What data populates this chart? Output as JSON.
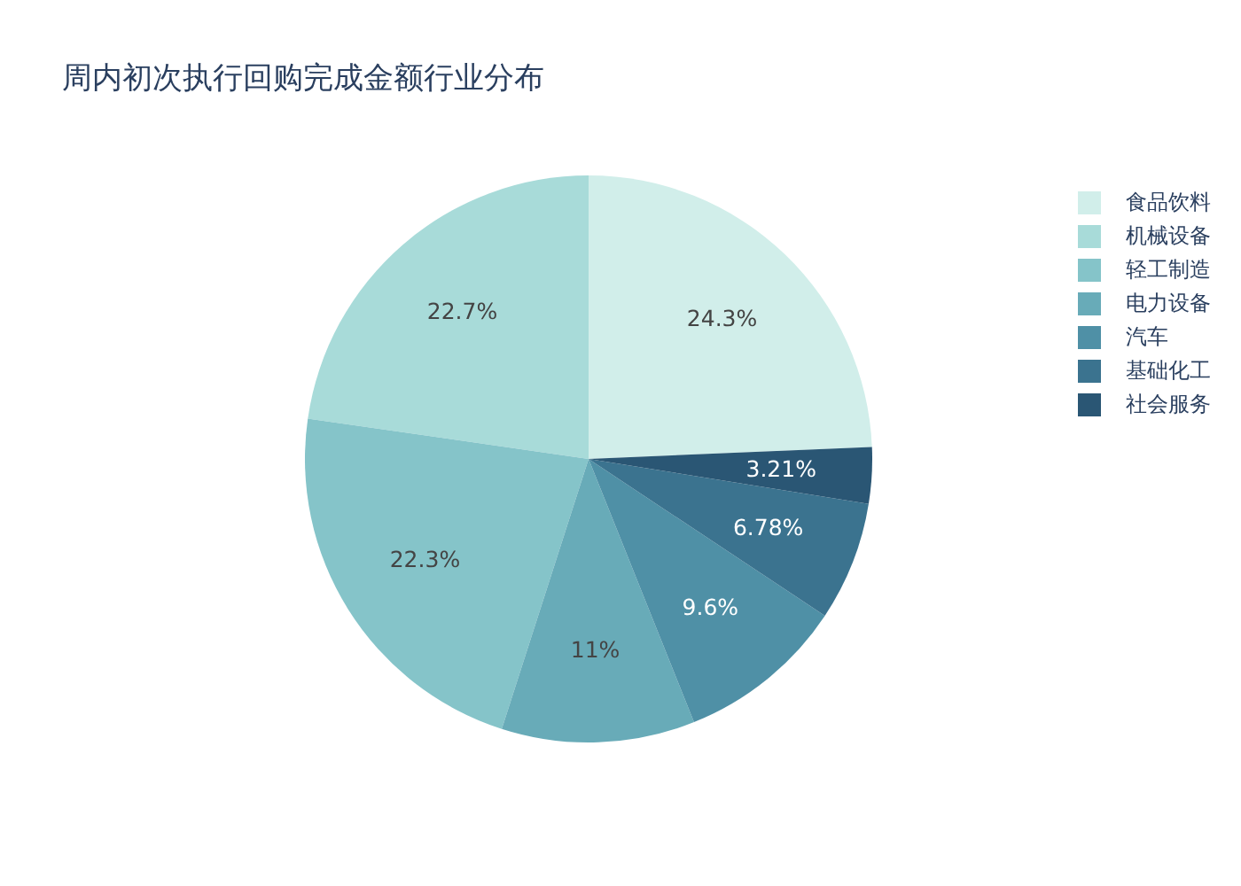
{
  "chart_data": {
    "type": "pie",
    "title": "周内初次执行回购完成金额行业分布",
    "categories": [
      "食品饮料",
      "机械设备",
      "轻工制造",
      "电力设备",
      "汽车",
      "基础化工",
      "社会服务"
    ],
    "values": [
      24.3,
      22.7,
      22.3,
      11,
      9.6,
      6.78,
      3.21
    ],
    "colors": [
      "#d1eeea",
      "#a8dbd9",
      "#85c4c9",
      "#68abb8",
      "#4f90a6",
      "#3b738f",
      "#2a5674"
    ],
    "value_labels": [
      "24.3%",
      "22.7%",
      "22.3%",
      "11%",
      "9.6%",
      "6.78%",
      "3.21%"
    ],
    "legend": "top right"
  }
}
